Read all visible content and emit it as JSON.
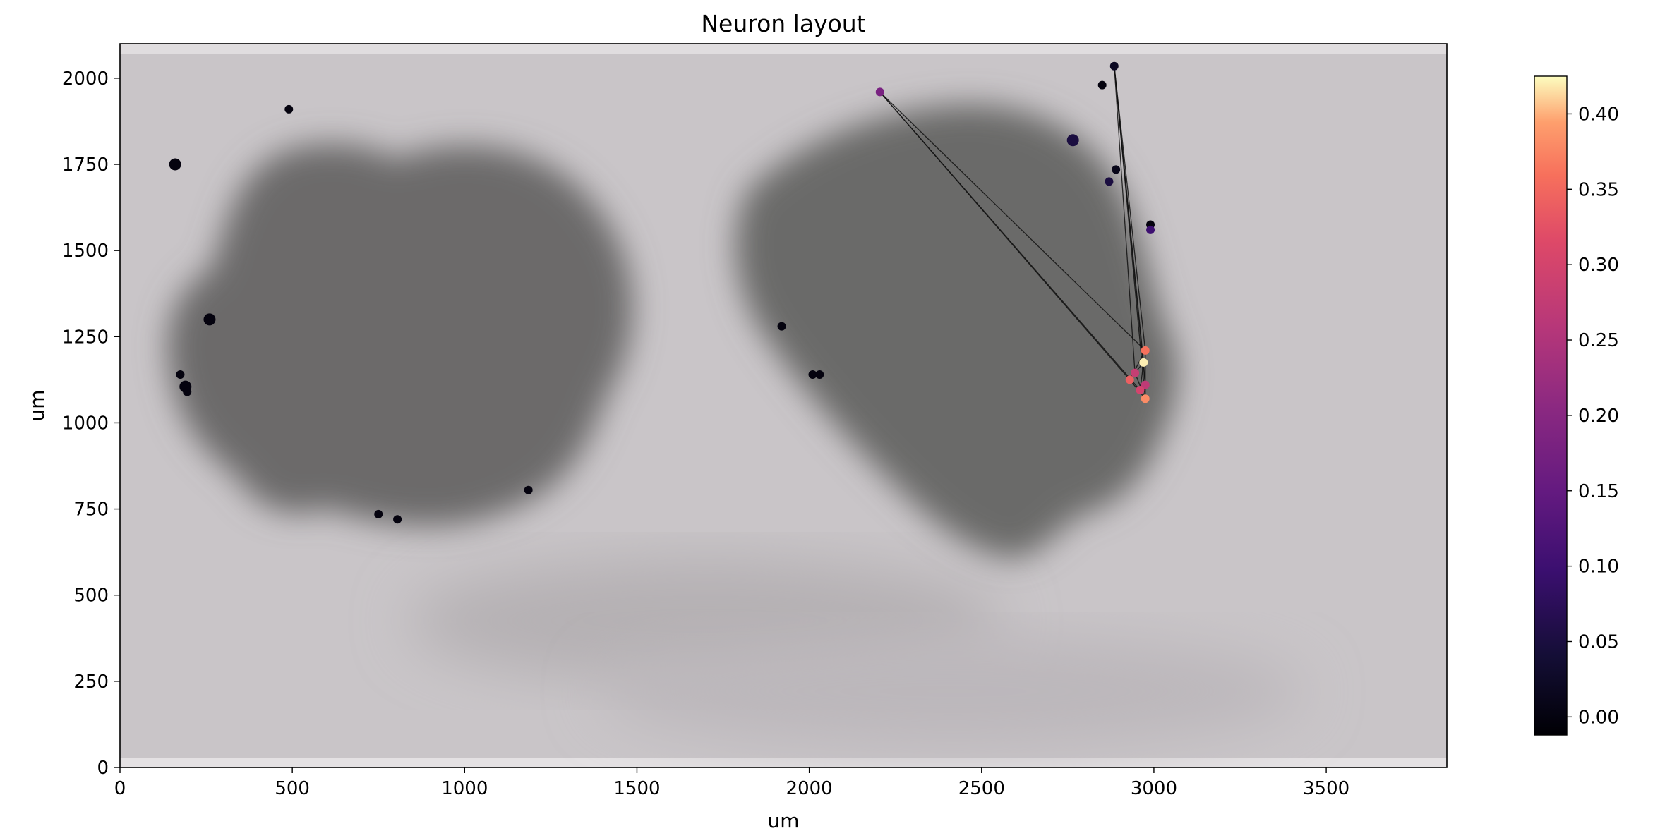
{
  "chart_data": {
    "type": "scatter",
    "title": "Neuron layout",
    "xlabel": "um",
    "ylabel": "um",
    "xlim": [
      0,
      3850
    ],
    "ylim": [
      0,
      2100
    ],
    "xticks": [
      0,
      500,
      1000,
      1500,
      2000,
      2500,
      3000,
      3500
    ],
    "yticks": [
      0,
      250,
      500,
      750,
      1000,
      1250,
      1500,
      1750,
      2000
    ],
    "background": "grayscale microscope image of tissue with two dark blobs",
    "colormap": "magma",
    "colorbar": {
      "range": [
        -0.012,
        0.425
      ],
      "ticks": [
        "0.00",
        "0.05",
        "0.10",
        "0.15",
        "0.20",
        "0.25",
        "0.30",
        "0.35",
        "0.40"
      ],
      "tick_values": [
        0.0,
        0.05,
        0.1,
        0.15,
        0.2,
        0.25,
        0.3,
        0.35,
        0.4
      ]
    },
    "neurons": [
      {
        "id": "n1",
        "x": 160,
        "y": 1750,
        "value": 0.0,
        "size": "large"
      },
      {
        "id": "n2",
        "x": 490,
        "y": 1910,
        "value": 0.0,
        "size": "small"
      },
      {
        "id": "n3",
        "x": 260,
        "y": 1300,
        "value": 0.0,
        "size": "large"
      },
      {
        "id": "n4",
        "x": 175,
        "y": 1140,
        "value": 0.0,
        "size": "small"
      },
      {
        "id": "n5",
        "x": 190,
        "y": 1105,
        "value": 0.0,
        "size": "large"
      },
      {
        "id": "n6",
        "x": 195,
        "y": 1090,
        "value": 0.0,
        "size": "small"
      },
      {
        "id": "n7",
        "x": 750,
        "y": 735,
        "value": 0.0,
        "size": "small"
      },
      {
        "id": "n8",
        "x": 805,
        "y": 720,
        "value": 0.0,
        "size": "small"
      },
      {
        "id": "n9",
        "x": 1185,
        "y": 805,
        "value": 0.0,
        "size": "small"
      },
      {
        "id": "n10",
        "x": 1920,
        "y": 1280,
        "value": 0.0,
        "size": "small"
      },
      {
        "id": "n11",
        "x": 2010,
        "y": 1140,
        "value": 0.0,
        "size": "small"
      },
      {
        "id": "n12",
        "x": 2030,
        "y": 1140,
        "value": 0.0,
        "size": "small"
      },
      {
        "id": "n13",
        "x": 2205,
        "y": 1960,
        "value": 0.18,
        "size": "small"
      },
      {
        "id": "n14",
        "x": 2765,
        "y": 1820,
        "value": 0.05,
        "size": "large"
      },
      {
        "id": "n15",
        "x": 2850,
        "y": 1980,
        "value": 0.0,
        "size": "small"
      },
      {
        "id": "n16",
        "x": 2885,
        "y": 2035,
        "value": 0.02,
        "size": "small"
      },
      {
        "id": "n17",
        "x": 2890,
        "y": 1735,
        "value": 0.01,
        "size": "small"
      },
      {
        "id": "n18",
        "x": 2870,
        "y": 1700,
        "value": 0.05,
        "size": "small"
      },
      {
        "id": "n19",
        "x": 2990,
        "y": 1575,
        "value": 0.0,
        "size": "small"
      },
      {
        "id": "n20",
        "x": 2990,
        "y": 1560,
        "value": 0.1,
        "size": "small"
      },
      {
        "id": "n21",
        "x": 2975,
        "y": 1210,
        "value": 0.36,
        "size": "small"
      },
      {
        "id": "n22",
        "x": 2970,
        "y": 1175,
        "value": 0.42,
        "size": "small"
      },
      {
        "id": "n23",
        "x": 2945,
        "y": 1145,
        "value": 0.28,
        "size": "small"
      },
      {
        "id": "n24",
        "x": 2930,
        "y": 1125,
        "value": 0.34,
        "size": "small"
      },
      {
        "id": "n25",
        "x": 2975,
        "y": 1110,
        "value": 0.27,
        "size": "small"
      },
      {
        "id": "n26",
        "x": 2960,
        "y": 1095,
        "value": 0.3,
        "size": "small"
      },
      {
        "id": "n27",
        "x": 2975,
        "y": 1070,
        "value": 0.38,
        "size": "small"
      }
    ],
    "connections": [
      [
        "n13",
        "n24"
      ],
      [
        "n13",
        "n21"
      ],
      [
        "n13",
        "n26"
      ],
      [
        "n16",
        "n21"
      ],
      [
        "n16",
        "n22"
      ],
      [
        "n16",
        "n27"
      ],
      [
        "n16",
        "n25"
      ],
      [
        "n16",
        "n23"
      ],
      [
        "n24",
        "n21"
      ],
      [
        "n24",
        "n27"
      ],
      [
        "n23",
        "n22"
      ],
      [
        "n26",
        "n22"
      ],
      [
        "n21",
        "n27"
      ],
      [
        "n25",
        "n22"
      ],
      [
        "n23",
        "n27"
      ]
    ]
  }
}
